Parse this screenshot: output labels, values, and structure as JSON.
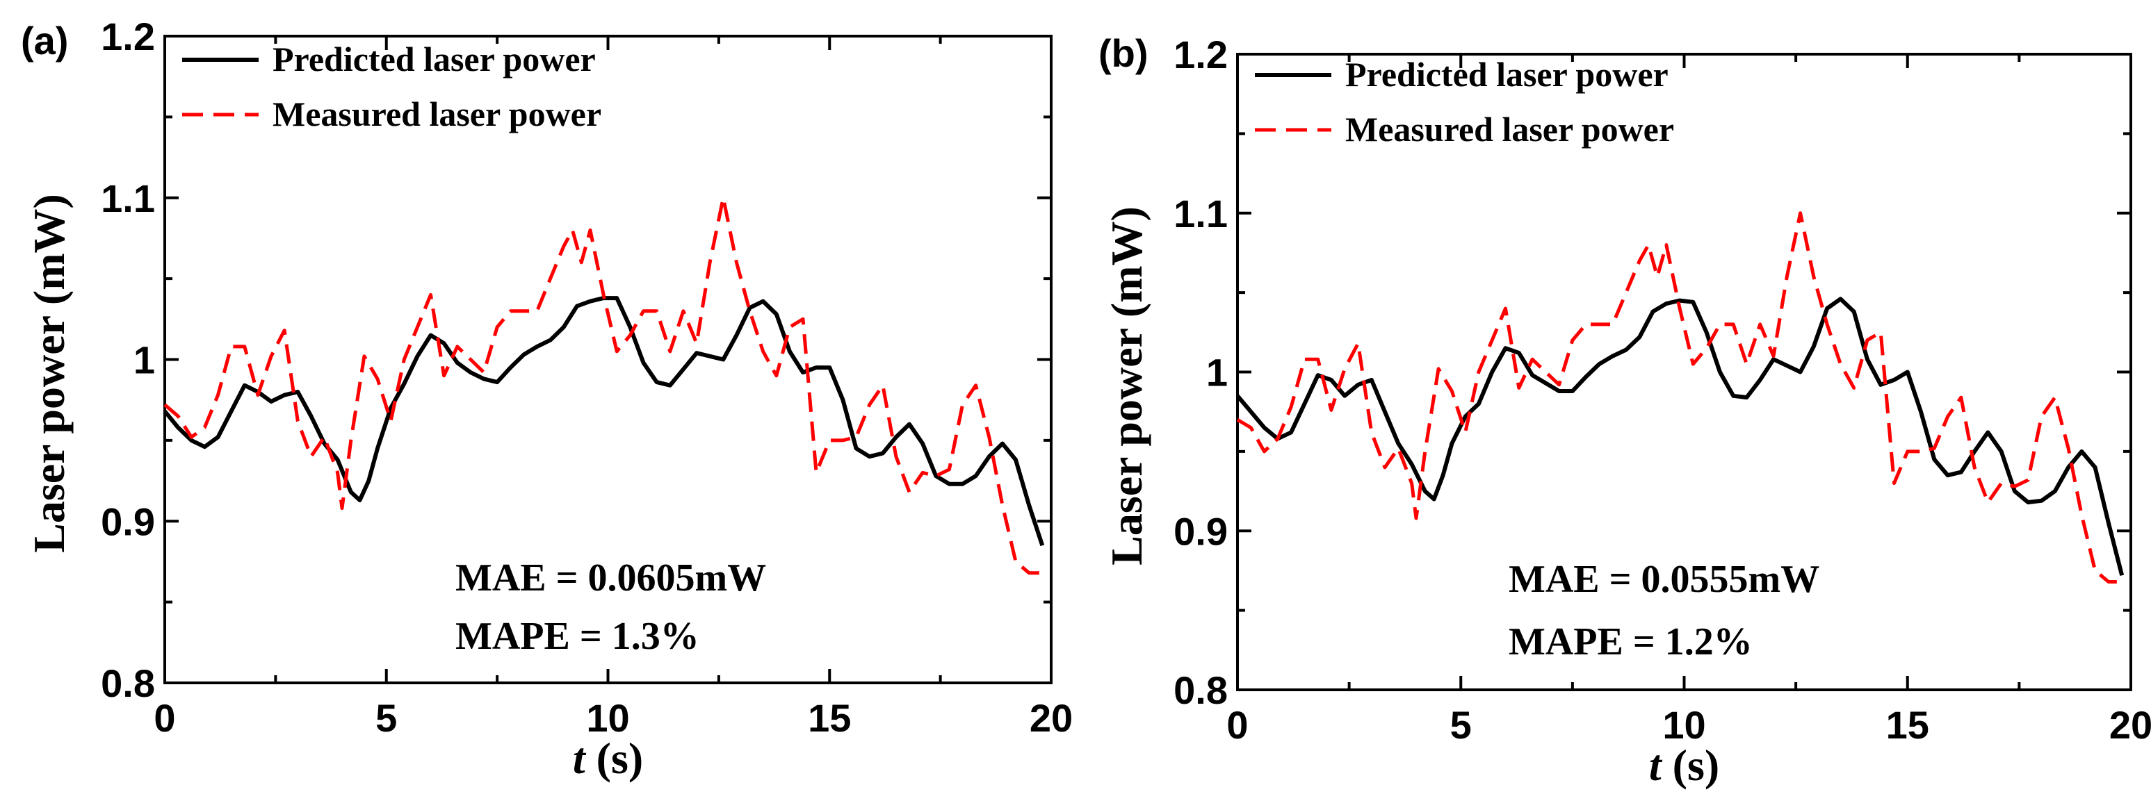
{
  "chart_data": [
    {
      "type": "line",
      "panel_label": "(a)",
      "xlabel_italic": "t",
      "xlabel_rest": " (s)",
      "ylabel": "Laser power (mW)",
      "xlim": [
        0,
        20
      ],
      "ylim": [
        0.8,
        1.2
      ],
      "xticks": [
        "0",
        "5",
        "10",
        "15",
        "20"
      ],
      "yticks": [
        "0.8",
        "0.9",
        "1",
        "1.1",
        "1.2"
      ],
      "legend_position": "top-left",
      "annotations": [
        "MAE = 0.0605mW",
        "MAPE = 1.3%"
      ],
      "colors": {
        "predicted": "#000000",
        "measured": "#ff0000"
      },
      "series": [
        {
          "name": "Predicted laser power",
          "style": "solid",
          "x": [
            0,
            0.3,
            0.6,
            0.9,
            1.2,
            1.5,
            1.8,
            2.1,
            2.4,
            2.7,
            3.0,
            3.3,
            3.6,
            3.9,
            4.2,
            4.4,
            4.6,
            4.8,
            5.1,
            5.4,
            5.7,
            6.0,
            6.3,
            6.6,
            6.9,
            7.2,
            7.5,
            7.8,
            8.1,
            8.4,
            8.7,
            9.0,
            9.3,
            9.6,
            9.9,
            10.2,
            10.5,
            10.8,
            11.1,
            11.4,
            11.7,
            12.0,
            12.3,
            12.6,
            12.9,
            13.2,
            13.5,
            13.8,
            14.1,
            14.4,
            14.7,
            15.0,
            15.3,
            15.6,
            15.9,
            16.2,
            16.5,
            16.8,
            17.1,
            17.4,
            17.7,
            18.0,
            18.3,
            18.6,
            18.9,
            19.2,
            19.5,
            19.8
          ],
          "y": [
            0.968,
            0.958,
            0.95,
            0.946,
            0.952,
            0.968,
            0.984,
            0.98,
            0.974,
            0.978,
            0.98,
            0.965,
            0.948,
            0.938,
            0.918,
            0.913,
            0.925,
            0.945,
            0.97,
            0.985,
            1.002,
            1.015,
            1.01,
            0.998,
            0.992,
            0.988,
            0.986,
            0.995,
            1.003,
            1.008,
            1.012,
            1.02,
            1.033,
            1.036,
            1.038,
            1.038,
            1.02,
            0.998,
            0.986,
            0.984,
            0.994,
            1.004,
            1.002,
            1.0,
            1.015,
            1.032,
            1.036,
            1.028,
            1.005,
            0.992,
            0.995,
            0.995,
            0.975,
            0.945,
            0.94,
            0.942,
            0.952,
            0.96,
            0.948,
            0.928,
            0.923,
            0.923,
            0.928,
            0.94,
            0.948,
            0.938,
            0.91,
            0.885
          ]
        },
        {
          "name": "Measured laser power",
          "style": "dashed",
          "x": [
            0,
            0.3,
            0.6,
            0.9,
            1.2,
            1.5,
            1.8,
            2.1,
            2.4,
            2.7,
            3.0,
            3.3,
            3.6,
            3.9,
            4.0,
            4.2,
            4.5,
            4.8,
            5.1,
            5.4,
            5.7,
            6.0,
            6.3,
            6.6,
            6.9,
            7.2,
            7.5,
            7.8,
            8.1,
            8.4,
            8.7,
            9.0,
            9.2,
            9.4,
            9.6,
            9.9,
            10.2,
            10.5,
            10.8,
            11.1,
            11.4,
            11.7,
            12.0,
            12.3,
            12.6,
            12.9,
            13.2,
            13.5,
            13.8,
            14.1,
            14.4,
            14.7,
            15.0,
            15.3,
            15.6,
            15.9,
            16.2,
            16.5,
            16.8,
            17.1,
            17.4,
            17.7,
            18.0,
            18.3,
            18.6,
            18.9,
            19.2,
            19.5,
            19.8
          ],
          "y": [
            0.972,
            0.965,
            0.952,
            0.958,
            0.978,
            1.008,
            1.008,
            0.978,
            1.002,
            1.018,
            0.962,
            0.94,
            0.952,
            0.93,
            0.908,
            0.95,
            1.002,
            0.988,
            0.962,
            1.0,
            1.02,
            1.04,
            0.99,
            1.008,
            1.0,
            0.992,
            1.02,
            1.03,
            1.03,
            1.03,
            1.05,
            1.07,
            1.08,
            1.06,
            1.08,
            1.04,
            1.005,
            1.015,
            1.03,
            1.03,
            1.005,
            1.03,
            1.01,
            1.06,
            1.1,
            1.06,
            1.03,
            1.005,
            0.99,
            1.02,
            1.025,
            0.93,
            0.95,
            0.95,
            0.952,
            0.972,
            0.984,
            0.94,
            0.918,
            0.93,
            0.928,
            0.932,
            0.972,
            0.984,
            0.952,
            0.91,
            0.875,
            0.868,
            0.868
          ]
        }
      ]
    },
    {
      "type": "line",
      "panel_label": "(b)",
      "xlabel_italic": "t",
      "xlabel_rest": " (s)",
      "ylabel": "Laser power (mW)",
      "xlim": [
        0,
        20
      ],
      "ylim": [
        0.8,
        1.2
      ],
      "xticks": [
        "0",
        "5",
        "10",
        "15",
        "20"
      ],
      "yticks": [
        "0.8",
        "0.9",
        "1",
        "1.1",
        "1.2"
      ],
      "legend_position": "top-left",
      "annotations": [
        "MAE = 0.0555mW",
        "MAPE = 1.2%"
      ],
      "colors": {
        "predicted": "#000000",
        "measured": "#ff0000"
      },
      "series": [
        {
          "name": "Predicted laser power",
          "style": "solid",
          "x": [
            0,
            0.3,
            0.6,
            0.9,
            1.2,
            1.5,
            1.8,
            2.1,
            2.4,
            2.7,
            3.0,
            3.3,
            3.6,
            3.9,
            4.2,
            4.4,
            4.6,
            4.8,
            5.1,
            5.4,
            5.7,
            6.0,
            6.3,
            6.6,
            6.9,
            7.2,
            7.5,
            7.8,
            8.1,
            8.4,
            8.7,
            9.0,
            9.3,
            9.6,
            9.9,
            10.2,
            10.5,
            10.8,
            11.1,
            11.4,
            11.7,
            12.0,
            12.3,
            12.6,
            12.9,
            13.2,
            13.5,
            13.8,
            14.1,
            14.4,
            14.7,
            15.0,
            15.3,
            15.6,
            15.9,
            16.2,
            16.5,
            16.8,
            17.1,
            17.4,
            17.7,
            18.0,
            18.3,
            18.6,
            18.9,
            19.2,
            19.5,
            19.8
          ],
          "y": [
            0.985,
            0.975,
            0.965,
            0.958,
            0.962,
            0.98,
            0.998,
            0.995,
            0.985,
            0.992,
            0.995,
            0.975,
            0.955,
            0.942,
            0.925,
            0.92,
            0.935,
            0.955,
            0.972,
            0.98,
            1.0,
            1.015,
            1.012,
            0.998,
            0.993,
            0.988,
            0.988,
            0.997,
            1.005,
            1.01,
            1.014,
            1.022,
            1.038,
            1.043,
            1.045,
            1.044,
            1.025,
            1.0,
            0.985,
            0.984,
            0.995,
            1.008,
            1.004,
            1.0,
            1.016,
            1.04,
            1.046,
            1.038,
            1.008,
            0.992,
            0.995,
            1.0,
            0.975,
            0.945,
            0.935,
            0.937,
            0.95,
            0.962,
            0.95,
            0.925,
            0.918,
            0.919,
            0.925,
            0.94,
            0.95,
            0.94,
            0.905,
            0.872
          ]
        },
        {
          "name": "Measured laser power",
          "style": "dashed",
          "x": [
            0,
            0.3,
            0.6,
            0.9,
            1.2,
            1.5,
            1.8,
            2.1,
            2.4,
            2.7,
            3.0,
            3.3,
            3.6,
            3.9,
            4.0,
            4.2,
            4.5,
            4.8,
            5.1,
            5.4,
            5.7,
            6.0,
            6.3,
            6.6,
            6.9,
            7.2,
            7.5,
            7.8,
            8.1,
            8.4,
            8.7,
            9.0,
            9.2,
            9.4,
            9.6,
            9.9,
            10.2,
            10.5,
            10.8,
            11.1,
            11.4,
            11.7,
            12.0,
            12.3,
            12.6,
            12.9,
            13.2,
            13.5,
            13.8,
            14.1,
            14.4,
            14.7,
            15.0,
            15.3,
            15.6,
            15.9,
            16.2,
            16.5,
            16.8,
            17.1,
            17.4,
            17.7,
            18.0,
            18.3,
            18.6,
            18.9,
            19.2,
            19.5,
            19.8
          ],
          "y": [
            0.97,
            0.965,
            0.95,
            0.958,
            0.978,
            1.008,
            1.008,
            0.976,
            1.002,
            1.018,
            0.962,
            0.94,
            0.952,
            0.93,
            0.908,
            0.95,
            1.002,
            0.988,
            0.962,
            1.0,
            1.02,
            1.04,
            0.99,
            1.008,
            1.0,
            0.992,
            1.02,
            1.03,
            1.03,
            1.03,
            1.05,
            1.07,
            1.08,
            1.06,
            1.08,
            1.04,
            1.005,
            1.015,
            1.03,
            1.03,
            1.005,
            1.03,
            1.01,
            1.06,
            1.1,
            1.06,
            1.03,
            1.005,
            0.99,
            1.02,
            1.025,
            0.93,
            0.95,
            0.95,
            0.952,
            0.972,
            0.984,
            0.94,
            0.918,
            0.93,
            0.928,
            0.932,
            0.972,
            0.984,
            0.952,
            0.91,
            0.875,
            0.868,
            0.868
          ]
        }
      ]
    }
  ]
}
